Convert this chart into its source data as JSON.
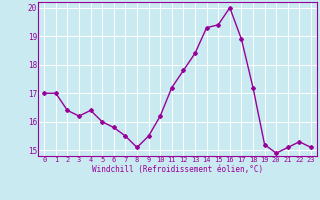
{
  "x": [
    0,
    1,
    2,
    3,
    4,
    5,
    6,
    7,
    8,
    9,
    10,
    11,
    12,
    13,
    14,
    15,
    16,
    17,
    18,
    19,
    20,
    21,
    22,
    23
  ],
  "y": [
    17.0,
    17.0,
    16.4,
    16.2,
    16.4,
    16.0,
    15.8,
    15.5,
    15.1,
    15.5,
    16.2,
    17.2,
    17.8,
    18.4,
    19.3,
    19.4,
    20.0,
    18.9,
    17.2,
    15.2,
    14.9,
    15.1,
    15.3,
    15.1
  ],
  "line_color": "#990099",
  "marker": "D",
  "marker_size": 2.0,
  "bg_color": "#c8eaf0",
  "grid_color": "#b0d8e0",
  "xlabel": "Windchill (Refroidissement éolien,°C)",
  "xlabel_color": "#990099",
  "tick_color": "#990099",
  "spine_color": "#990099",
  "ylim": [
    14.8,
    20.2
  ],
  "yticks": [
    15,
    16,
    17,
    18,
    19,
    20
  ],
  "xlim": [
    -0.5,
    23.5
  ],
  "xticks": [
    0,
    1,
    2,
    3,
    4,
    5,
    6,
    7,
    8,
    9,
    10,
    11,
    12,
    13,
    14,
    15,
    16,
    17,
    18,
    19,
    20,
    21,
    22,
    23
  ],
  "xtick_labels": [
    "0",
    "1",
    "2",
    "3",
    "4",
    "5",
    "6",
    "7",
    "8",
    "9",
    "10",
    "11",
    "12",
    "13",
    "14",
    "15",
    "16",
    "17",
    "18",
    "19",
    "20",
    "21",
    "22",
    "23"
  ],
  "line_width": 1.0,
  "tick_fontsize": 5.0,
  "xlabel_fontsize": 5.5,
  "ytick_fontsize": 5.5
}
